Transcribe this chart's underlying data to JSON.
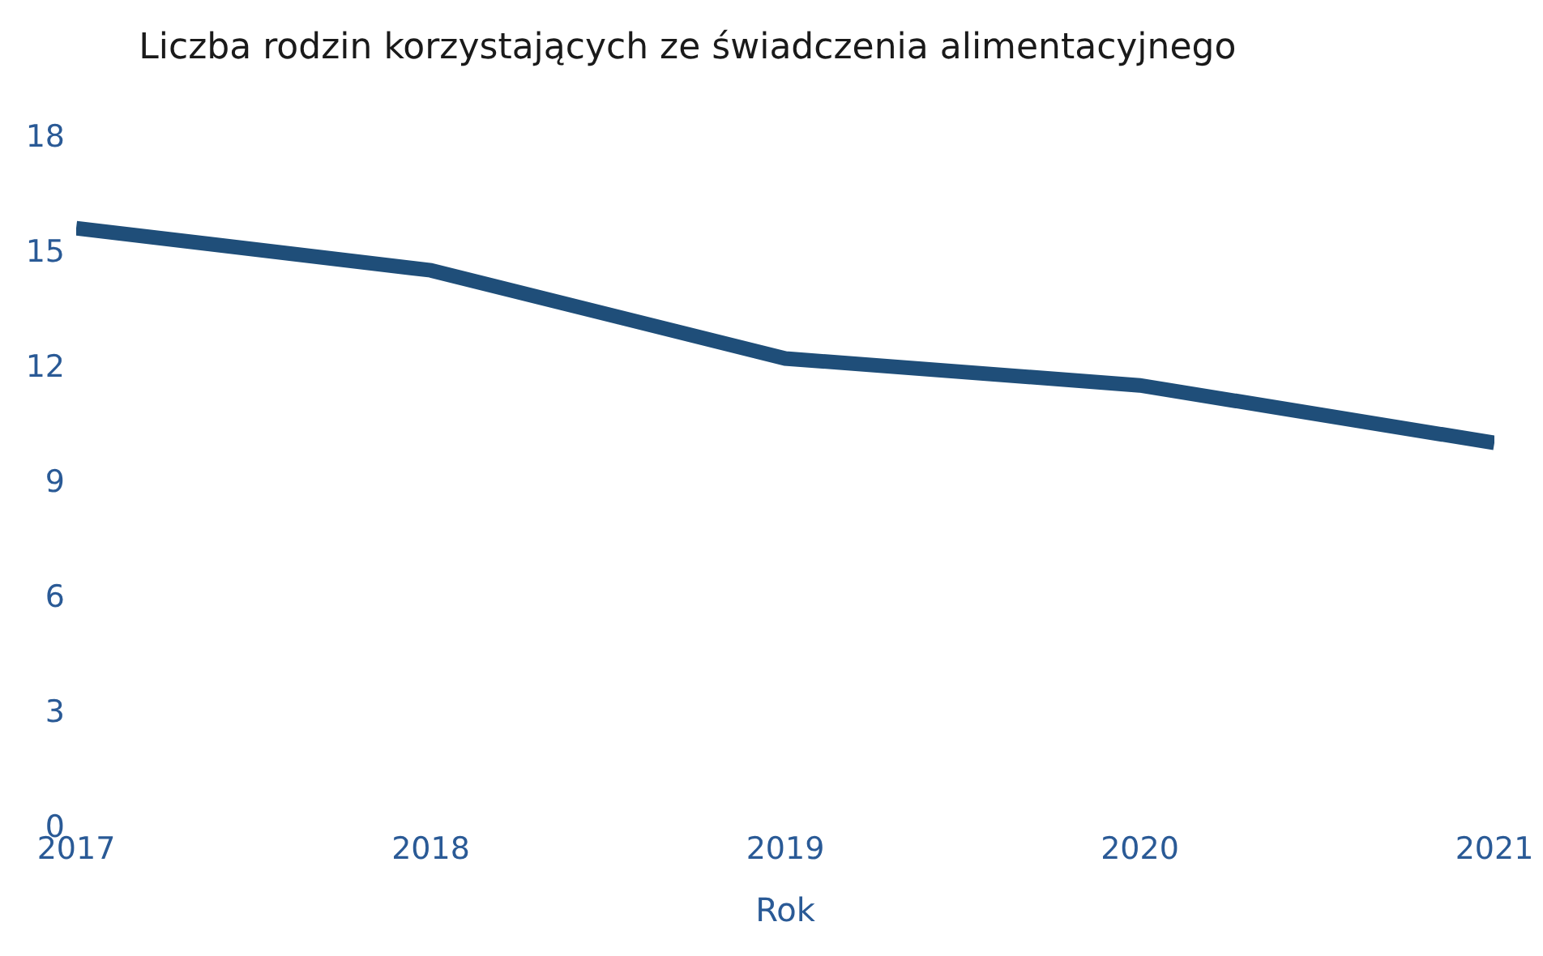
{
  "chart_data": {
    "type": "line",
    "title": "Liczba rodzin korzystających ze świadczenia alimentacyjnego",
    "xlabel": "Rok",
    "x": [
      2017,
      2018,
      2019,
      2020,
      2021
    ],
    "series": [
      {
        "color": "#1f4e79",
        "values": [
          15.6,
          14.5,
          12.2,
          11.5,
          10.0
        ]
      }
    ],
    "xlim": [
      2017,
      2021
    ],
    "xticks": [
      2017,
      2018,
      2019,
      2020,
      2021
    ],
    "ylim": [
      0,
      18
    ],
    "yticks": [
      0,
      3,
      6,
      9,
      12,
      15,
      18
    ],
    "grid": false,
    "marker": "none",
    "line_style": "solid"
  }
}
